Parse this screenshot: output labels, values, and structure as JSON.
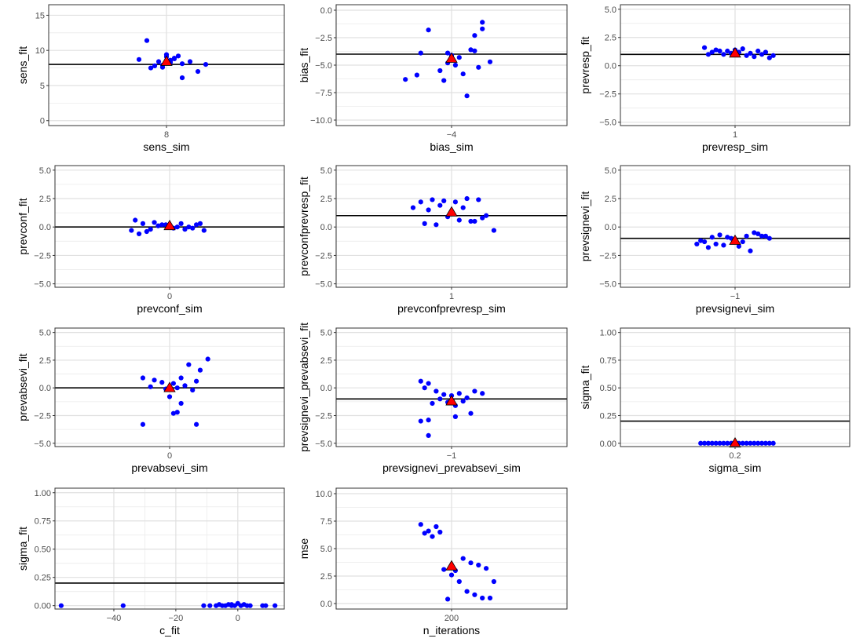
{
  "chart_data": [
    {
      "type": "scatter",
      "xlabel": "sens_sim",
      "ylabel": "sens_fit",
      "xlim": [
        7.7,
        8.3
      ],
      "ylim": [
        -0.7,
        16.5
      ],
      "xticks": [
        8
      ],
      "xtick_labels": [
        "8"
      ],
      "yticks": [
        0,
        5,
        10,
        15
      ],
      "ytick_labels": [
        "0",
        "5",
        "10",
        "15"
      ],
      "hline": 8.0,
      "mean_point": {
        "x": 8.0,
        "y": 8.4
      },
      "points": {
        "x": [
          7.95,
          7.98,
          8.01,
          8.03,
          7.99,
          8.04,
          8.0,
          7.97,
          8.02,
          8.06,
          8.1,
          8.0,
          7.93,
          8.04,
          8.08,
          7.96,
          8.0,
          8.02,
          7.99,
          8.01
        ],
        "y": [
          11.4,
          8.4,
          8.6,
          9.2,
          7.6,
          8.1,
          9.1,
          7.8,
          8.8,
          8.4,
          8.0,
          8.2,
          8.7,
          6.1,
          7.0,
          7.5,
          9.4,
          8.9,
          7.9,
          8.3
        ]
      }
    },
    {
      "type": "scatter",
      "xlabel": "bias_sim",
      "ylabel": "bias_fit",
      "xlim": [
        -4.3,
        -3.7
      ],
      "ylim": [
        -10.5,
        0.5
      ],
      "xticks": [
        -4
      ],
      "xtick_labels": [
        "−4"
      ],
      "yticks": [
        0,
        -2.5,
        -5,
        -7.5,
        -10
      ],
      "ytick_labels": [
        "0.0",
        "−2.5",
        "−5.0",
        "−7.5",
        "−10.0"
      ],
      "hline": -4.0,
      "mean_point": {
        "x": -4.0,
        "y": -4.4
      },
      "points": {
        "x": [
          -3.92,
          -3.94,
          -4.06,
          -3.92,
          -3.95,
          -4.01,
          -3.9,
          -3.99,
          -4.03,
          -4.09,
          -3.97,
          -4.12,
          -4.02,
          -3.96,
          -3.93,
          -4.08,
          -3.98,
          -4.0,
          -3.94,
          -4.01
        ],
        "y": [
          -1.1,
          -2.3,
          -1.8,
          -1.7,
          -3.6,
          -3.9,
          -4.7,
          -5.0,
          -5.5,
          -5.9,
          -5.8,
          -6.3,
          -6.4,
          -7.8,
          -5.2,
          -3.9,
          -4.3,
          -4.1,
          -3.7,
          -4.8
        ]
      }
    },
    {
      "type": "scatter",
      "xlabel": "prevresp_sim",
      "ylabel": "prevresp_fit",
      "xlim": [
        0.7,
        1.3
      ],
      "ylim": [
        -5.3,
        5.4
      ],
      "xticks": [
        1
      ],
      "xtick_labels": [
        "1"
      ],
      "yticks": [
        5,
        2.5,
        0,
        -2.5,
        -5
      ],
      "ytick_labels": [
        "5.0",
        "2.5",
        "0.0",
        "−2.5",
        "−5.0"
      ],
      "hline": 1.0,
      "mean_point": {
        "x": 1.0,
        "y": 1.1
      },
      "points": {
        "x": [
          0.92,
          0.95,
          0.98,
          1.01,
          1.04,
          1.07,
          1.1,
          0.94,
          0.97,
          1.0,
          1.03,
          1.06,
          1.09,
          0.93,
          0.96,
          0.99,
          1.02,
          1.05,
          1.08,
          1.0
        ],
        "y": [
          1.6,
          1.4,
          1.3,
          1.2,
          1.1,
          1.0,
          0.9,
          1.2,
          1.0,
          1.4,
          0.9,
          1.3,
          0.7,
          1.0,
          1.3,
          1.1,
          1.5,
          0.8,
          1.2,
          1.3
        ]
      }
    },
    {
      "type": "scatter",
      "xlabel": "prevconf_sim",
      "ylabel": "prevconf_fit",
      "xlim": [
        -0.3,
        0.3
      ],
      "ylim": [
        -5.3,
        5.4
      ],
      "xticks": [
        0
      ],
      "xtick_labels": [
        "0"
      ],
      "yticks": [
        5,
        2.5,
        0,
        -2.5,
        -5
      ],
      "ytick_labels": [
        "5.0",
        "2.5",
        "0.0",
        "−2.5",
        "−5.0"
      ],
      "hline": 0.0,
      "mean_point": {
        "x": 0.0,
        "y": 0.1
      },
      "points": {
        "x": [
          -0.09,
          -0.07,
          -0.05,
          -0.03,
          -0.01,
          0.01,
          0.03,
          0.05,
          0.07,
          0.09,
          -0.08,
          -0.04,
          0.0,
          0.04,
          0.08,
          -0.06,
          -0.02,
          0.02,
          0.06,
          -0.1
        ],
        "y": [
          0.6,
          0.3,
          -0.2,
          0.1,
          0.2,
          -0.1,
          0.3,
          0.0,
          0.2,
          -0.3,
          -0.6,
          0.4,
          0.1,
          -0.2,
          0.3,
          -0.4,
          0.2,
          0.0,
          -0.1,
          -0.3
        ]
      }
    },
    {
      "type": "scatter",
      "xlabel": "prevconfprevresp_sim",
      "ylabel": "prevconfprevresp_fit",
      "xlim": [
        0.7,
        1.3
      ],
      "ylim": [
        -5.3,
        5.4
      ],
      "xticks": [
        1
      ],
      "xtick_labels": [
        "1"
      ],
      "yticks": [
        5,
        2.5,
        0,
        -2.5,
        -5
      ],
      "ytick_labels": [
        "5.0",
        "2.5",
        "0.0",
        "−2.5",
        "−5.0"
      ],
      "hline": 1.0,
      "mean_point": {
        "x": 1.0,
        "y": 1.3
      },
      "points": {
        "x": [
          0.92,
          0.95,
          0.98,
          1.01,
          1.04,
          1.07,
          0.9,
          0.94,
          0.97,
          1.0,
          1.03,
          1.06,
          1.09,
          0.93,
          0.96,
          0.99,
          1.02,
          1.05,
          1.08,
          1.11
        ],
        "y": [
          2.2,
          2.4,
          2.3,
          2.2,
          2.5,
          2.4,
          1.7,
          1.5,
          1.9,
          1.2,
          1.7,
          0.5,
          1.0,
          0.3,
          0.2,
          0.9,
          0.6,
          0.5,
          0.8,
          -0.3
        ]
      }
    },
    {
      "type": "scatter",
      "xlabel": "prevsignevi_sim",
      "ylabel": "prevsignevi_fit",
      "xlim": [
        -1.3,
        -0.7
      ],
      "ylim": [
        -5.3,
        5.4
      ],
      "xticks": [
        -1
      ],
      "xtick_labels": [
        "−1"
      ],
      "yticks": [
        5,
        2.5,
        0,
        -2.5,
        -5
      ],
      "ytick_labels": [
        "5.0",
        "2.5",
        "0.0",
        "−2.5",
        "−5.0"
      ],
      "hline": -1.0,
      "mean_point": {
        "x": -1.0,
        "y": -1.2
      },
      "points": {
        "x": [
          -1.1,
          -1.07,
          -1.04,
          -1.01,
          -0.98,
          -0.95,
          -0.92,
          -1.09,
          -1.06,
          -1.03,
          -1.0,
          -0.97,
          -0.94,
          -0.91,
          -1.08,
          -1.05,
          -1.02,
          -0.99,
          -0.96,
          -0.93
        ],
        "y": [
          -1.5,
          -1.8,
          -0.7,
          -1.0,
          -1.3,
          -0.5,
          -0.8,
          -1.2,
          -0.9,
          -1.6,
          -1.1,
          -0.8,
          -0.6,
          -1.0,
          -1.3,
          -1.5,
          -0.9,
          -1.7,
          -2.1,
          -0.8
        ]
      }
    },
    {
      "type": "scatter",
      "xlabel": "prevabsevi_sim",
      "ylabel": "prevabsevi_fit",
      "xlim": [
        -0.3,
        0.3
      ],
      "ylim": [
        -5.3,
        5.4
      ],
      "xticks": [
        0
      ],
      "xtick_labels": [
        "0"
      ],
      "yticks": [
        5,
        2.5,
        0,
        -2.5,
        -5
      ],
      "ytick_labels": [
        "5.0",
        "2.5",
        "0.0",
        "−2.5",
        "−5.0"
      ],
      "hline": 0.0,
      "mean_point": {
        "x": 0.0,
        "y": 0.0
      },
      "points": {
        "x": [
          0.1,
          0.05,
          0.08,
          -0.07,
          -0.04,
          0.03,
          -0.02,
          0.01,
          0.04,
          0.07,
          -0.05,
          -0.01,
          0.02,
          0.06,
          0.0,
          0.03,
          0.01,
          0.02,
          -0.07,
          0.07
        ],
        "y": [
          2.6,
          2.1,
          1.6,
          0.9,
          0.7,
          0.9,
          0.5,
          0.4,
          0.2,
          0.6,
          0.1,
          -0.1,
          0.0,
          -0.2,
          -0.8,
          -1.4,
          -2.3,
          -2.2,
          -3.3,
          -3.3
        ]
      }
    },
    {
      "type": "scatter",
      "xlabel": "prevsignevi_prevabsevi_sim",
      "ylabel": "prevsignevi_prevabsevi_fit",
      "xlim": [
        -1.3,
        -0.7
      ],
      "ylim": [
        -5.3,
        5.4
      ],
      "xticks": [
        -1
      ],
      "xtick_labels": [
        "−1"
      ],
      "yticks": [
        5,
        2.5,
        0,
        -2.5,
        -5
      ],
      "ytick_labels": [
        "5.0",
        "2.5",
        "0.0",
        "−2.5",
        "−5.0"
      ],
      "hline": -1.0,
      "mean_point": {
        "x": -1.0,
        "y": -1.2
      },
      "points": {
        "x": [
          -1.08,
          -1.06,
          -1.07,
          -1.04,
          -1.02,
          -1.0,
          -0.98,
          -0.96,
          -0.94,
          -0.92,
          -1.03,
          -1.01,
          -0.99,
          -0.97,
          -0.95,
          -1.05,
          -0.99,
          -1.06,
          -1.08,
          -1.06
        ],
        "y": [
          0.6,
          0.4,
          0.0,
          -0.3,
          -0.6,
          -0.7,
          -0.5,
          -0.9,
          -0.3,
          -0.5,
          -1.0,
          -1.3,
          -1.6,
          -1.2,
          -2.3,
          -1.4,
          -2.6,
          -2.9,
          -3.0,
          -4.3
        ]
      }
    },
    {
      "type": "scatter",
      "xlabel": "sigma_sim",
      "ylabel": "sigma_fit",
      "xlim": [
        0.17,
        0.23
      ],
      "ylim": [
        -0.03,
        1.04
      ],
      "xticks": [
        0.2
      ],
      "xtick_labels": [
        "0.2"
      ],
      "yticks": [
        1.0,
        0.75,
        0.5,
        0.25,
        0.0
      ],
      "ytick_labels": [
        "1.00",
        "0.75",
        "0.50",
        "0.25",
        "0.00"
      ],
      "hline": 0.2,
      "mean_point": {
        "x": 0.2,
        "y": 0.0
      },
      "points": {
        "x": [
          0.191,
          0.192,
          0.193,
          0.194,
          0.195,
          0.196,
          0.197,
          0.198,
          0.199,
          0.2,
          0.201,
          0.202,
          0.203,
          0.204,
          0.205,
          0.206,
          0.207,
          0.208,
          0.209,
          0.21
        ],
        "y": [
          0,
          0,
          0,
          0,
          0,
          0,
          0,
          0,
          0,
          0,
          0,
          0,
          0,
          0,
          0,
          0,
          0,
          0,
          0,
          0
        ]
      }
    },
    {
      "type": "scatter",
      "xlabel": "c_fit",
      "ylabel": "sigma_fit",
      "xlim": [
        -59,
        15
      ],
      "ylim": [
        -0.03,
        1.04
      ],
      "xticks": [
        -40,
        -20,
        0
      ],
      "xtick_labels": [
        "−40",
        "−20",
        "0"
      ],
      "yticks": [
        1.0,
        0.75,
        0.5,
        0.25,
        0.0
      ],
      "ytick_labels": [
        "1.00",
        "0.75",
        "0.50",
        "0.25",
        "0.00"
      ],
      "hline": 0.2,
      "points": {
        "x": [
          -57,
          -37,
          -11,
          -9,
          -7,
          -5,
          -4,
          -3,
          -2,
          -1,
          0,
          1,
          2,
          3,
          4,
          8,
          9,
          12,
          -6,
          -2
        ],
        "y": [
          0,
          0,
          0,
          0,
          0,
          0,
          0,
          0.01,
          0,
          0,
          0.02,
          0,
          0.01,
          0,
          0,
          0,
          0,
          0,
          0.01,
          0.01
        ]
      }
    },
    {
      "type": "scatter",
      "xlabel": "n_iterations",
      "ylabel": "mse",
      "xlim": [
        140,
        260
      ],
      "ylim": [
        -0.5,
        10.5
      ],
      "xticks": [
        200
      ],
      "xtick_labels": [
        "200"
      ],
      "yticks": [
        10,
        7.5,
        5,
        2.5,
        0
      ],
      "ytick_labels": [
        "10.0",
        "7.5",
        "5.0",
        "2.5",
        "0.0"
      ],
      "mean_point": {
        "x": 200,
        "y": 3.4
      },
      "points": {
        "x": [
          184,
          188,
          192,
          186,
          190,
          194,
          206,
          210,
          214,
          218,
          222,
          196,
          200,
          204,
          208,
          212,
          216,
          220,
          198,
          202
        ],
        "y": [
          7.2,
          6.6,
          7.0,
          6.4,
          6.1,
          6.5,
          4.1,
          3.7,
          3.5,
          3.2,
          2.0,
          3.1,
          2.6,
          2.0,
          1.1,
          0.8,
          0.5,
          0.5,
          0.4,
          3.0
        ]
      }
    }
  ]
}
